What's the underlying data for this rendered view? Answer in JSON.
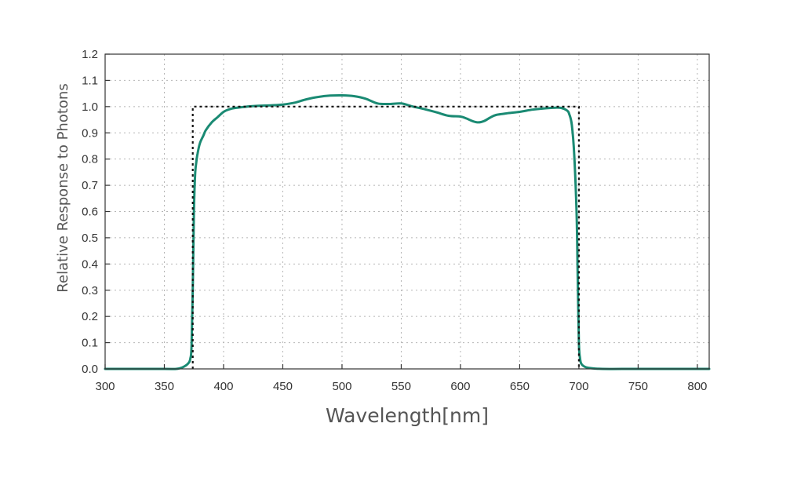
{
  "chart_data": {
    "type": "line",
    "title": "",
    "xlabel": "Wavelength[nm]",
    "ylabel": "Relative Response to Photons",
    "xlim": [
      300,
      810
    ],
    "ylim": [
      0,
      1.2
    ],
    "grid": true,
    "x_ticks": [
      300,
      350,
      400,
      450,
      500,
      550,
      600,
      650,
      700,
      750,
      800
    ],
    "y_ticks": [
      0.0,
      0.1,
      0.2,
      0.3,
      0.4,
      0.5,
      0.6,
      0.7,
      0.8,
      0.9,
      1.0,
      1.1,
      1.2
    ],
    "x_tick_labels": [
      "300",
      "350",
      "400",
      "450",
      "500",
      "550",
      "600",
      "650",
      "700",
      "750",
      "800"
    ],
    "y_tick_labels": [
      "0.0",
      "0.1",
      "0.2",
      "0.3",
      "0.4",
      "0.5",
      "0.6",
      "0.7",
      "0.8",
      "0.9",
      "1.0",
      "1.1",
      "1.2"
    ],
    "series": [
      {
        "style": "solid",
        "color": "#1a8a73",
        "x": [
          300,
          350,
          360,
          365,
          370,
          372,
          373,
          374,
          375,
          376,
          377,
          378,
          380,
          383,
          385,
          390,
          395,
          400,
          405,
          410,
          420,
          430,
          440,
          450,
          460,
          470,
          480,
          490,
          500,
          510,
          520,
          530,
          540,
          550,
          560,
          570,
          580,
          590,
          600,
          605,
          610,
          615,
          620,
          625,
          630,
          640,
          650,
          660,
          670,
          680,
          685,
          690,
          692,
          694,
          696,
          698,
          699,
          700,
          701,
          702,
          705,
          710,
          720,
          750,
          800,
          810
        ],
        "y": [
          0.0,
          0.0,
          0.0,
          0.005,
          0.02,
          0.04,
          0.09,
          0.3,
          0.6,
          0.74,
          0.79,
          0.82,
          0.86,
          0.89,
          0.91,
          0.94,
          0.96,
          0.98,
          0.99,
          0.995,
          1.0,
          1.003,
          1.005,
          1.008,
          1.015,
          1.028,
          1.037,
          1.042,
          1.043,
          1.04,
          1.03,
          1.012,
          1.01,
          1.012,
          1.0,
          0.99,
          0.978,
          0.965,
          0.962,
          0.955,
          0.945,
          0.94,
          0.945,
          0.958,
          0.968,
          0.975,
          0.98,
          0.988,
          0.993,
          0.996,
          0.995,
          0.985,
          0.97,
          0.93,
          0.82,
          0.6,
          0.35,
          0.1,
          0.04,
          0.02,
          0.008,
          0.003,
          0.0,
          0.0,
          0.0,
          0.0
        ]
      },
      {
        "style": "dotted",
        "color": "#111111",
        "x": [
          374,
          374,
          700,
          700
        ],
        "y": [
          0,
          1.0,
          1.0,
          0
        ]
      }
    ]
  }
}
